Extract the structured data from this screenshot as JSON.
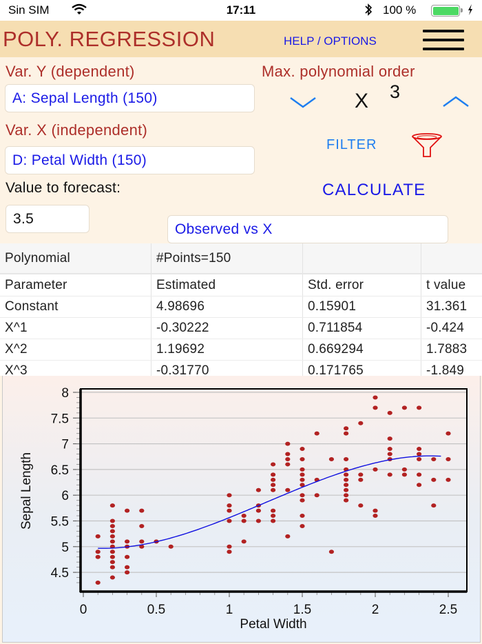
{
  "statusbar": {
    "carrier": "Sin SIM",
    "time": "17:11",
    "battery_percent": "100 %",
    "icons": [
      "wifi-icon",
      "bluetooth-icon",
      "battery-icon",
      "charging-bolt-icon"
    ]
  },
  "appbar": {
    "title": "POLY. REGRESSION",
    "help_label": "HELP / OPTIONS",
    "menu_icon": "hamburger-menu-icon"
  },
  "form": {
    "var_y_label": "Var. Y (dependent)",
    "var_y_value": "A: Sepal Length (150)",
    "var_x_label": "Var. X (independent)",
    "var_x_value": "D: Petal Width (150)",
    "forecast_label": "Value to forecast:",
    "forecast_value": "3.5",
    "max_order_label": "Max. polynomial order",
    "order_base": "X",
    "order_value": "3",
    "decrease_icon": "chevron-down-icon",
    "increase_icon": "chevron-up-icon",
    "filter_label": "FILTER",
    "filter_icon": "funnel-icon",
    "calculate_label": "CALCULATE",
    "plot_type": "Observed vs X"
  },
  "table": {
    "header": [
      "Polynomial",
      "#Points=150",
      "",
      ""
    ],
    "rows": [
      [
        "Parameter",
        "Estimated",
        "Std. error",
        "t value"
      ],
      [
        "Constant",
        "4.98696",
        "0.15901",
        "31.361"
      ],
      [
        "X^1",
        "-0.30222",
        "0.711854",
        "-0.424"
      ],
      [
        "X^2",
        "1.19692",
        "0.669294",
        "1.7883"
      ],
      [
        "X^3",
        "-0.31770",
        "0.171765",
        "-1.849"
      ]
    ]
  },
  "colors": {
    "title_red": "#ad2f2a",
    "link_blue": "#1a1ae6",
    "filter_blue": "#1e7ef0",
    "appbar_bg": "#f6deb2",
    "form_bg": "#fdf3e5",
    "point_color": "#b22222",
    "fit_line": "#1010e0"
  },
  "chart_data": {
    "type": "scatter",
    "title": "",
    "xlabel": "Petal Width",
    "ylabel": "Sepal Length",
    "xlim": [
      0,
      2.6
    ],
    "ylim": [
      4.2,
      8.05
    ],
    "x_ticks": [
      "0",
      "0.5",
      "1",
      "1.5",
      "2",
      "2.5"
    ],
    "y_ticks": [
      "4.5",
      "5",
      "5.5",
      "6",
      "6.5",
      "7",
      "7.5",
      "8"
    ],
    "grid": "horizontal",
    "legend": "none",
    "series": [
      {
        "name": "Observed",
        "type": "scatter",
        "points": [
          [
            0.1,
            5.2
          ],
          [
            0.1,
            4.9
          ],
          [
            0.1,
            4.8
          ],
          [
            0.1,
            4.3
          ],
          [
            0.2,
            5.8
          ],
          [
            0.2,
            5.5
          ],
          [
            0.2,
            5.4
          ],
          [
            0.2,
            5.3
          ],
          [
            0.2,
            5.2
          ],
          [
            0.2,
            5.1
          ],
          [
            0.2,
            5.0
          ],
          [
            0.2,
            4.9
          ],
          [
            0.2,
            4.8
          ],
          [
            0.2,
            4.7
          ],
          [
            0.2,
            4.6
          ],
          [
            0.2,
            4.4
          ],
          [
            0.3,
            5.7
          ],
          [
            0.3,
            5.1
          ],
          [
            0.3,
            5.0
          ],
          [
            0.3,
            4.8
          ],
          [
            0.3,
            4.6
          ],
          [
            0.3,
            4.5
          ],
          [
            0.4,
            5.7
          ],
          [
            0.4,
            5.4
          ],
          [
            0.4,
            5.1
          ],
          [
            0.4,
            5.0
          ],
          [
            0.5,
            5.1
          ],
          [
            0.6,
            5.0
          ],
          [
            1.0,
            6.0
          ],
          [
            1.0,
            5.8
          ],
          [
            1.0,
            5.7
          ],
          [
            1.0,
            5.5
          ],
          [
            1.0,
            5.0
          ],
          [
            1.0,
            4.9
          ],
          [
            1.1,
            5.6
          ],
          [
            1.1,
            5.5
          ],
          [
            1.1,
            5.1
          ],
          [
            1.2,
            6.1
          ],
          [
            1.2,
            5.8
          ],
          [
            1.2,
            5.7
          ],
          [
            1.2,
            5.5
          ],
          [
            1.3,
            6.6
          ],
          [
            1.3,
            6.4
          ],
          [
            1.3,
            6.3
          ],
          [
            1.3,
            6.2
          ],
          [
            1.3,
            6.1
          ],
          [
            1.3,
            5.7
          ],
          [
            1.3,
            5.6
          ],
          [
            1.3,
            5.5
          ],
          [
            1.4,
            7.0
          ],
          [
            1.4,
            6.8
          ],
          [
            1.4,
            6.7
          ],
          [
            1.4,
            6.6
          ],
          [
            1.4,
            6.1
          ],
          [
            1.4,
            5.2
          ],
          [
            1.5,
            6.9
          ],
          [
            1.5,
            6.7
          ],
          [
            1.5,
            6.5
          ],
          [
            1.5,
            6.4
          ],
          [
            1.5,
            6.3
          ],
          [
            1.5,
            6.2
          ],
          [
            1.5,
            6.0
          ],
          [
            1.5,
            5.9
          ],
          [
            1.5,
            5.6
          ],
          [
            1.5,
            5.4
          ],
          [
            1.6,
            7.2
          ],
          [
            1.6,
            6.3
          ],
          [
            1.6,
            6.0
          ],
          [
            1.7,
            6.7
          ],
          [
            1.7,
            4.9
          ],
          [
            1.8,
            7.3
          ],
          [
            1.8,
            7.2
          ],
          [
            1.8,
            6.7
          ],
          [
            1.8,
            6.5
          ],
          [
            1.8,
            6.4
          ],
          [
            1.8,
            6.3
          ],
          [
            1.8,
            6.2
          ],
          [
            1.8,
            6.1
          ],
          [
            1.8,
            6.0
          ],
          [
            1.8,
            5.9
          ],
          [
            1.9,
            7.4
          ],
          [
            1.9,
            6.4
          ],
          [
            1.9,
            6.3
          ],
          [
            1.9,
            5.8
          ],
          [
            2.0,
            7.9
          ],
          [
            2.0,
            7.7
          ],
          [
            2.0,
            6.5
          ],
          [
            2.0,
            5.7
          ],
          [
            2.0,
            5.6
          ],
          [
            2.1,
            7.6
          ],
          [
            2.1,
            7.1
          ],
          [
            2.1,
            6.9
          ],
          [
            2.1,
            6.8
          ],
          [
            2.1,
            6.7
          ],
          [
            2.1,
            6.4
          ],
          [
            2.2,
            7.7
          ],
          [
            2.2,
            6.5
          ],
          [
            2.2,
            6.4
          ],
          [
            2.3,
            7.7
          ],
          [
            2.3,
            6.9
          ],
          [
            2.3,
            6.8
          ],
          [
            2.3,
            6.7
          ],
          [
            2.3,
            6.4
          ],
          [
            2.3,
            6.2
          ],
          [
            2.4,
            6.7
          ],
          [
            2.4,
            6.3
          ],
          [
            2.4,
            5.8
          ],
          [
            2.5,
            7.2
          ],
          [
            2.5,
            6.7
          ],
          [
            2.5,
            6.3
          ]
        ]
      },
      {
        "name": "Polynomial fit (order 3)",
        "type": "line",
        "coefficients": [
          4.98696,
          -0.30222,
          1.19692,
          -0.3177
        ],
        "x_range": [
          0.1,
          2.45
        ]
      }
    ]
  }
}
